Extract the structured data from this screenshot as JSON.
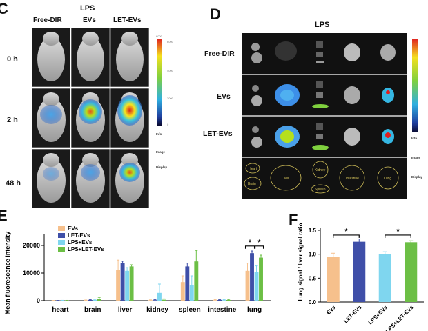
{
  "panel_c": {
    "letter": "C",
    "header": "LPS",
    "columns": [
      "Free-DIR",
      "EVs",
      "LET-EVs"
    ],
    "rows": [
      "0 h",
      "2 h",
      "48 h"
    ],
    "scale_max": "6000",
    "scale_ticks": [
      "6000",
      "4000",
      "2000",
      "0"
    ],
    "info": [
      "Info",
      "Image",
      "Display"
    ]
  },
  "panel_d": {
    "letter": "D",
    "header": "LPS",
    "rows": [
      "Free-DIR",
      "EVs",
      "LET-EVs"
    ],
    "organ_labels": [
      "Heart",
      "Brain",
      "Liver",
      "Kidney",
      "Spleen",
      "Intestine",
      "Lung"
    ],
    "info": [
      "Info",
      "Image",
      "Display"
    ]
  },
  "panel_e": {
    "letter": "E",
    "chart_data": {
      "type": "bar",
      "title": "",
      "xlabel": "",
      "ylabel": "Mean fluorescence intensity",
      "ylim": [
        0,
        22000
      ],
      "yticks": [
        0,
        10000,
        20000
      ],
      "categories": [
        "heart",
        "brain",
        "liver",
        "kidney",
        "spleen",
        "intestine",
        "lung"
      ],
      "series": [
        {
          "name": "EVs",
          "color": "#f6c08c",
          "values": [
            50,
            150,
            11200,
            150,
            6700,
            200,
            10800
          ],
          "errors": [
            50,
            100,
            3500,
            150,
            2300,
            150,
            2800
          ]
        },
        {
          "name": "LET-EVs",
          "color": "#3f4fa8",
          "values": [
            60,
            250,
            13500,
            200,
            12400,
            250,
            17200
          ],
          "errors": [
            50,
            150,
            800,
            200,
            1200,
            150,
            800
          ]
        },
        {
          "name": "LPS+EVs",
          "color": "#7fd6ef",
          "values": [
            80,
            300,
            10800,
            2800,
            5500,
            200,
            10400
          ],
          "errors": [
            60,
            200,
            1200,
            3200,
            3500,
            150,
            2200
          ]
        },
        {
          "name": "LPS+LET-EVs",
          "color": "#6cbf45",
          "values": [
            70,
            700,
            12400,
            350,
            14200,
            250,
            15600
          ],
          "errors": [
            60,
            500,
            600,
            300,
            4000,
            200,
            900
          ]
        }
      ],
      "significance": [
        "*",
        "*"
      ],
      "legend_position": "top-left"
    }
  },
  "panel_f": {
    "letter": "F",
    "chart_data": {
      "type": "bar",
      "title": "",
      "xlabel": "",
      "ylabel": "Lung signal / liver signal ratio",
      "ylim": [
        0,
        1.5
      ],
      "yticks": [
        "0.0",
        "0.5",
        "1.0",
        "1.5"
      ],
      "categories": [
        "EVs",
        "LET-EVs",
        "LPS+EVs",
        "LPS+LET-EVs"
      ],
      "values": [
        0.95,
        1.26,
        1.0,
        1.25
      ],
      "errors": [
        0.07,
        0.06,
        0.05,
        0.03
      ],
      "colors": [
        "#f6c08c",
        "#3f4fa8",
        "#7fd6ef",
        "#6cbf45"
      ],
      "significance": [
        "*",
        "*"
      ]
    }
  }
}
